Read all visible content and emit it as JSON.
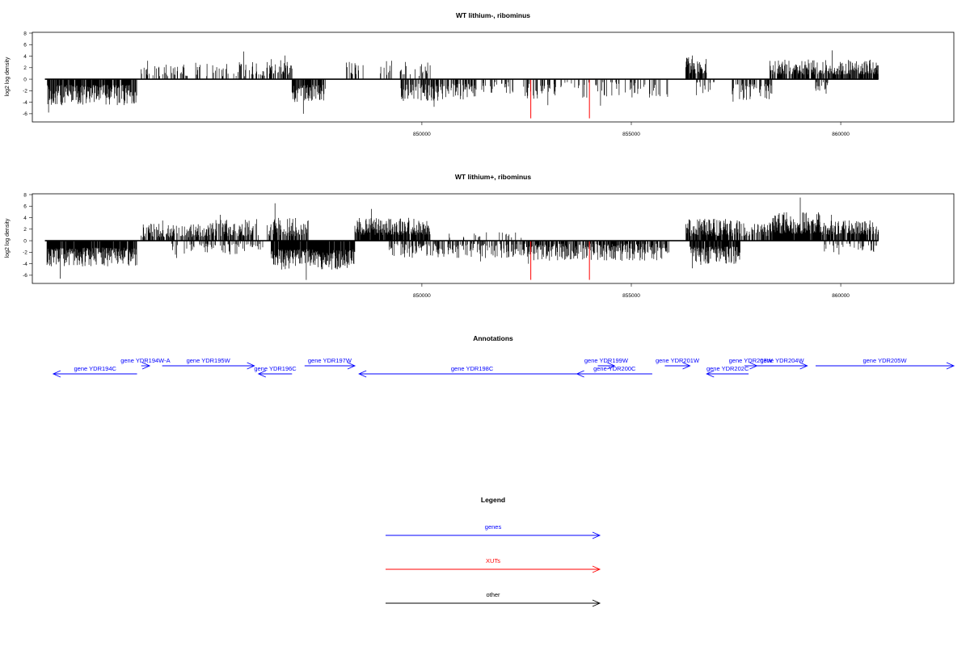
{
  "chart_data": [
    {
      "type": "bar",
      "title": "WT lithium-, ribominus",
      "xlabel": "",
      "ylabel": "log2 log density",
      "xlim": [
        840700,
        862700
      ],
      "ylim": [
        -7,
        8
      ],
      "xticks": [
        850000,
        855000,
        860000
      ],
      "xtick_labels": [
        "850000",
        "855000",
        "860000"
      ],
      "yticks": [
        -6,
        -4,
        -2,
        0,
        2,
        4,
        6,
        8
      ],
      "ytick_labels": [
        "-6",
        "-4",
        "-2",
        "0",
        "2",
        "4",
        "6",
        "8"
      ],
      "baseline_range": [
        841000,
        856000
      ],
      "series": [
        {
          "color": "#000000",
          "segments": [
            {
              "x0": 841050,
              "x1": 843200,
              "seed": 11,
              "sign": -1,
              "min": 1.0,
              "max": 4.5,
              "peak": 5.8,
              "density": 0.85
            },
            {
              "x0": 843300,
              "x1": 844400,
              "seed": 12,
              "sign": 1,
              "min": 0.5,
              "max": 2.6,
              "peak": 3.2,
              "density": 0.35
            },
            {
              "x0": 844600,
              "x1": 846300,
              "seed": 13,
              "sign": 1,
              "min": 0.5,
              "max": 3.0,
              "peak": 4.8,
              "density": 0.25
            },
            {
              "x0": 846300,
              "x1": 846900,
              "seed": 14,
              "sign": 1,
              "min": 0.8,
              "max": 3.6,
              "peak": 4.1,
              "density": 0.55
            },
            {
              "x0": 846900,
              "x1": 847700,
              "seed": 15,
              "sign": -1,
              "min": 1.0,
              "max": 4.0,
              "peak": 6.0,
              "density": 0.8
            },
            {
              "x0": 848200,
              "x1": 848600,
              "seed": 16,
              "sign": 1,
              "min": 0.8,
              "max": 3.6,
              "peak": 3.8,
              "density": 0.5
            },
            {
              "x0": 849000,
              "x1": 850200,
              "seed": 17,
              "sign": 1,
              "min": 0.5,
              "max": 3.2,
              "peak": 4.0,
              "density": 0.2
            },
            {
              "x0": 849500,
              "x1": 851300,
              "seed": 18,
              "sign": -1,
              "min": 0.8,
              "max": 3.8,
              "peak": 4.8,
              "density": 0.65
            },
            {
              "x0": 851400,
              "x1": 852200,
              "seed": 19,
              "sign": -1,
              "min": 0.5,
              "max": 3.5,
              "peak": 4.0,
              "density": 0.3
            },
            {
              "x0": 852400,
              "x1": 853200,
              "seed": 20,
              "sign": -1,
              "min": 0.8,
              "max": 3.4,
              "peak": 4.5,
              "density": 0.4
            },
            {
              "x0": 853300,
              "x1": 855900,
              "seed": 21,
              "sign": -1,
              "min": 0.5,
              "max": 3.2,
              "peak": 4.6,
              "density": 0.2
            },
            {
              "x0": 856300,
              "x1": 856800,
              "seed": 22,
              "sign": 1,
              "min": 1.0,
              "max": 3.8,
              "peak": 4.1,
              "density": 0.85
            },
            {
              "x0": 856500,
              "x1": 857000,
              "seed": 23,
              "sign": -1,
              "min": 0.5,
              "max": 2.8,
              "peak": 3.8,
              "density": 0.35
            },
            {
              "x0": 857400,
              "x1": 858400,
              "seed": 24,
              "sign": -1,
              "min": 0.8,
              "max": 3.6,
              "peak": 3.9,
              "density": 0.5
            },
            {
              "x0": 858300,
              "x1": 860900,
              "seed": 25,
              "sign": 1,
              "min": 0.8,
              "max": 3.4,
              "peak": 5.0,
              "density": 0.75
            },
            {
              "x0": 859400,
              "x1": 859700,
              "seed": 26,
              "sign": -1,
              "min": 0.5,
              "max": 2.6,
              "peak": 2.8,
              "density": 0.3
            }
          ]
        },
        {
          "color": "#ff0000",
          "lines": [
            {
              "x": 852600,
              "y": -6.8
            },
            {
              "x": 854000,
              "y": -6.8
            }
          ]
        }
      ]
    },
    {
      "type": "bar",
      "title": "WT lithium+, ribominus",
      "xlabel": "",
      "ylabel": "log2 log density",
      "xlim": [
        840700,
        862700
      ],
      "ylim": [
        -7,
        8
      ],
      "xticks": [
        850000,
        855000,
        860000
      ],
      "xtick_labels": [
        "850000",
        "855000",
        "860000"
      ],
      "yticks": [
        -6,
        -4,
        -2,
        0,
        2,
        4,
        6,
        8
      ],
      "ytick_labels": [
        "-6",
        "-4",
        "-2",
        "0",
        "2",
        "4",
        "6",
        "8"
      ],
      "baseline_range": [
        841000,
        856000
      ],
      "series": [
        {
          "color": "#000000",
          "segments": [
            {
              "x0": 841050,
              "x1": 843200,
              "seed": 31,
              "sign": -1,
              "min": 1.2,
              "max": 4.5,
              "peak": 6.6,
              "density": 0.9
            },
            {
              "x0": 843300,
              "x1": 844900,
              "seed": 32,
              "sign": 1,
              "min": 0.6,
              "max": 3.0,
              "peak": 3.5,
              "density": 0.55
            },
            {
              "x0": 844900,
              "x1": 846100,
              "seed": 33,
              "sign": 1,
              "min": 0.8,
              "max": 3.8,
              "peak": 4.5,
              "density": 0.6
            },
            {
              "x0": 844000,
              "x1": 846200,
              "seed": 34,
              "sign": -1,
              "min": 0.5,
              "max": 2.5,
              "peak": 3.0,
              "density": 0.25
            },
            {
              "x0": 846300,
              "x1": 847300,
              "seed": 35,
              "sign": 1,
              "min": 0.8,
              "max": 4.0,
              "peak": 6.5,
              "density": 0.7
            },
            {
              "x0": 846400,
              "x1": 848400,
              "seed": 36,
              "sign": -1,
              "min": 1.5,
              "max": 5.0,
              "peak": 6.8,
              "density": 0.95
            },
            {
              "x0": 848400,
              "x1": 850200,
              "seed": 37,
              "sign": 1,
              "min": 1.0,
              "max": 4.0,
              "peak": 5.5,
              "density": 0.9
            },
            {
              "x0": 849200,
              "x1": 852400,
              "seed": 38,
              "sign": -1,
              "min": 0.5,
              "max": 3.0,
              "peak": 3.6,
              "density": 0.45
            },
            {
              "x0": 850500,
              "x1": 852400,
              "seed": 39,
              "sign": 1,
              "min": 0.5,
              "max": 1.5,
              "peak": 2.0,
              "density": 0.1
            },
            {
              "x0": 852400,
              "x1": 855900,
              "seed": 40,
              "sign": -1,
              "min": 0.5,
              "max": 3.5,
              "peak": 4.0,
              "density": 0.75
            },
            {
              "x0": 856300,
              "x1": 857300,
              "seed": 41,
              "sign": 1,
              "min": 0.8,
              "max": 3.8,
              "peak": 5.5,
              "density": 0.85
            },
            {
              "x0": 856400,
              "x1": 857600,
              "seed": 42,
              "sign": -1,
              "min": 1.0,
              "max": 4.2,
              "peak": 4.8,
              "density": 0.9
            },
            {
              "x0": 857200,
              "x1": 858300,
              "seed": 43,
              "sign": 1,
              "min": 0.8,
              "max": 3.6,
              "peak": 6.0,
              "density": 0.55
            },
            {
              "x0": 858300,
              "x1": 859500,
              "seed": 44,
              "sign": 1,
              "min": 1.2,
              "max": 5.0,
              "peak": 7.5,
              "density": 0.98
            },
            {
              "x0": 859500,
              "x1": 860900,
              "seed": 45,
              "sign": 1,
              "min": 1.0,
              "max": 3.6,
              "peak": 4.5,
              "density": 0.75
            },
            {
              "x0": 859600,
              "x1": 860900,
              "seed": 46,
              "sign": -1,
              "min": 0.5,
              "max": 2.0,
              "peak": 2.4,
              "density": 0.2
            }
          ]
        },
        {
          "color": "#ff0000",
          "lines": [
            {
              "x": 852600,
              "y": -6.8
            },
            {
              "x": 854000,
              "y": -6.8
            }
          ]
        }
      ]
    }
  ],
  "annotations": {
    "title": "Annotations",
    "genes": [
      {
        "label": "gene YDR194C",
        "start": 843200,
        "end": 841200,
        "row": 1
      },
      {
        "label": "gene YDR194W-A",
        "start": 843300,
        "end": 843500,
        "row": 0
      },
      {
        "label": "gene YDR195W",
        "start": 843800,
        "end": 846000,
        "row": 0
      },
      {
        "label": "gene YDR196C",
        "start": 846900,
        "end": 846100,
        "row": 1
      },
      {
        "label": "gene YDR197W",
        "start": 847200,
        "end": 848400,
        "row": 0
      },
      {
        "label": "gene YDR198C",
        "start": 853900,
        "end": 848500,
        "row": 1
      },
      {
        "label": "gene YDR199W",
        "start": 854200,
        "end": 854600,
        "row": 0
      },
      {
        "label": "gene YDR200C",
        "start": 855500,
        "end": 853700,
        "row": 1
      },
      {
        "label": "gene YDR201W",
        "start": 855800,
        "end": 856400,
        "row": 0
      },
      {
        "label": "gene YDR202C",
        "start": 857800,
        "end": 856800,
        "row": 1
      },
      {
        "label": "gene YDR203W",
        "start": 857700,
        "end": 858000,
        "row": 0
      },
      {
        "label": "gene YDR204W",
        "start": 858000,
        "end": 859200,
        "row": 0
      },
      {
        "label": "gene YDR205W",
        "start": 859400,
        "end": 862700,
        "row": 0
      }
    ]
  },
  "legend": {
    "title": "Legend",
    "items": [
      {
        "label": "genes",
        "color": "#0000ff"
      },
      {
        "label": "XUTs",
        "color": "#ff0000"
      },
      {
        "label": "other",
        "color": "#000000"
      }
    ]
  }
}
